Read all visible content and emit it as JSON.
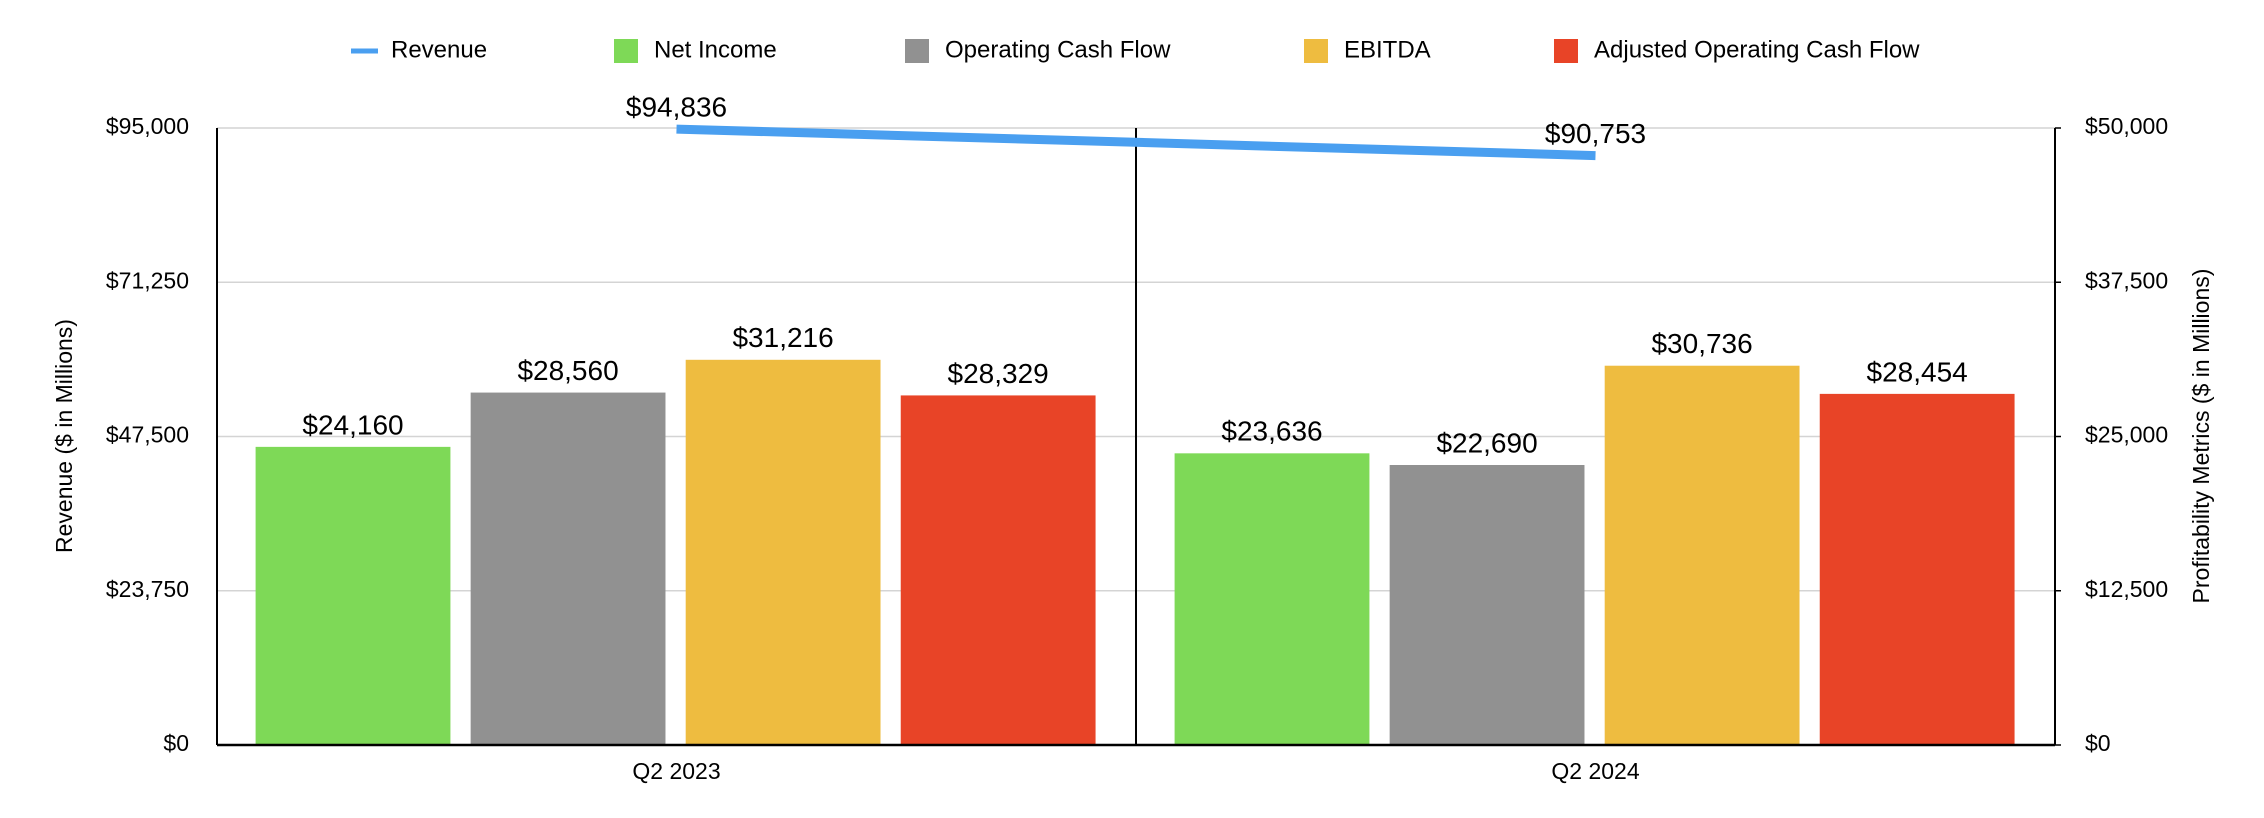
{
  "chart_data": {
    "type": "bar",
    "categories": [
      "Q2 2023",
      "Q2 2024"
    ],
    "series": [
      {
        "name": "Revenue",
        "type": "line",
        "axis": "y",
        "color": "#4a9ff0",
        "values": [
          94836,
          90753
        ],
        "value_labels": [
          "$94,836",
          "$90,753"
        ]
      },
      {
        "name": "Net Income",
        "axis": "y2",
        "color": "#7ed957",
        "values": [
          24160,
          23636
        ],
        "value_labels": [
          "$24,160",
          "$23,636"
        ]
      },
      {
        "name": "Operating Cash Flow",
        "axis": "y2",
        "color": "#919191",
        "values": [
          28560,
          22690
        ],
        "value_labels": [
          "$28,560",
          "$22,690"
        ]
      },
      {
        "name": "EBITDA",
        "axis": "y2",
        "color": "#eebc40",
        "values": [
          31216,
          30736
        ],
        "value_labels": [
          "$31,216",
          "$30,736"
        ]
      },
      {
        "name": "Adjusted Operating Cash Flow",
        "axis": "y2",
        "color": "#e84427",
        "values": [
          28329,
          28454
        ],
        "value_labels": [
          "$28,329",
          "$28,454"
        ]
      }
    ],
    "ylabel": "Revenue ($ in Millions)",
    "y2label": "Profitability Metrics ($ in Millions)",
    "ylim": [
      0,
      95000
    ],
    "yticks": [
      {
        "value": 0,
        "label": "$0"
      },
      {
        "value": 23750,
        "label": "$23,750"
      },
      {
        "value": 47500,
        "label": "$47,500"
      },
      {
        "value": 71250,
        "label": "$71,250"
      },
      {
        "value": 95000,
        "label": "$95,000"
      }
    ],
    "y2lim": [
      0,
      50000
    ],
    "y2ticks": [
      {
        "value": 0,
        "label": "$0"
      },
      {
        "value": 12500,
        "label": "$12,500"
      },
      {
        "value": 25000,
        "label": "$25,000"
      },
      {
        "value": 37500,
        "label": "$37,500"
      },
      {
        "value": 50000,
        "label": "$50,000"
      }
    ],
    "grid": true,
    "legend": "top"
  }
}
